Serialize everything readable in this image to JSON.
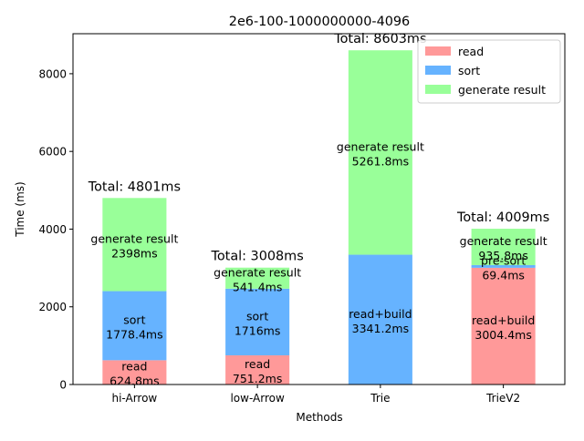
{
  "chart_data": {
    "type": "bar",
    "stacked": true,
    "title": "2e6-100-1000000000-4096",
    "xlabel": "Methods",
    "ylabel": "Time (ms)",
    "ylim": [
      0,
      9030
    ],
    "yticks": [
      0,
      2000,
      4000,
      6000,
      8000
    ],
    "ytick_labels": [
      "0",
      "2000",
      "4000",
      "6000",
      "8000"
    ],
    "grid": false,
    "legend_position": "top-right",
    "categories": [
      "hi-Arrow",
      "low-Arrow",
      "Trie",
      "TrieV2"
    ],
    "legend": [
      {
        "name": "read",
        "color": "#ff9999"
      },
      {
        "name": "sort",
        "color": "#66b3ff"
      },
      {
        "name": "generate result",
        "color": "#99ff99"
      }
    ],
    "stacks": [
      {
        "category": "hi-Arrow",
        "total_label": "Total: 4801ms",
        "segments": [
          {
            "label": "read",
            "value": 624.8,
            "value_label": "624.8ms",
            "color": "#ff9999"
          },
          {
            "label": "sort",
            "value": 1778.4,
            "value_label": "1778.4ms",
            "color": "#66b3ff"
          },
          {
            "label": "generate result",
            "value": 2398,
            "value_label": "2398ms",
            "color": "#99ff99"
          }
        ]
      },
      {
        "category": "low-Arrow",
        "total_label": "Total: 3008ms",
        "segments": [
          {
            "label": "read",
            "value": 751.2,
            "value_label": "751.2ms",
            "color": "#ff9999"
          },
          {
            "label": "sort",
            "value": 1716,
            "value_label": "1716ms",
            "color": "#66b3ff"
          },
          {
            "label": "generate result",
            "value": 541.4,
            "value_label": "541.4ms",
            "color": "#99ff99"
          }
        ]
      },
      {
        "category": "Trie",
        "total_label": "Total: 8603ms",
        "segments": [
          {
            "label": "read+build",
            "value": 3341.2,
            "value_label": "3341.2ms",
            "color": "#66b3ff"
          },
          {
            "label": "generate result",
            "value": 5261.8,
            "value_label": "5261.8ms",
            "color": "#99ff99"
          }
        ]
      },
      {
        "category": "TrieV2",
        "total_label": "Total: 4009ms",
        "segments": [
          {
            "label": "read+build",
            "value": 3004.4,
            "value_label": "3004.4ms",
            "color": "#ff9999"
          },
          {
            "label": "pre-sort",
            "value": 69.4,
            "value_label": "69.4ms",
            "color": "#66b3ff"
          },
          {
            "label": "generate result",
            "value": 935.8,
            "value_label": "935.8ms",
            "color": "#99ff99"
          }
        ]
      }
    ]
  }
}
